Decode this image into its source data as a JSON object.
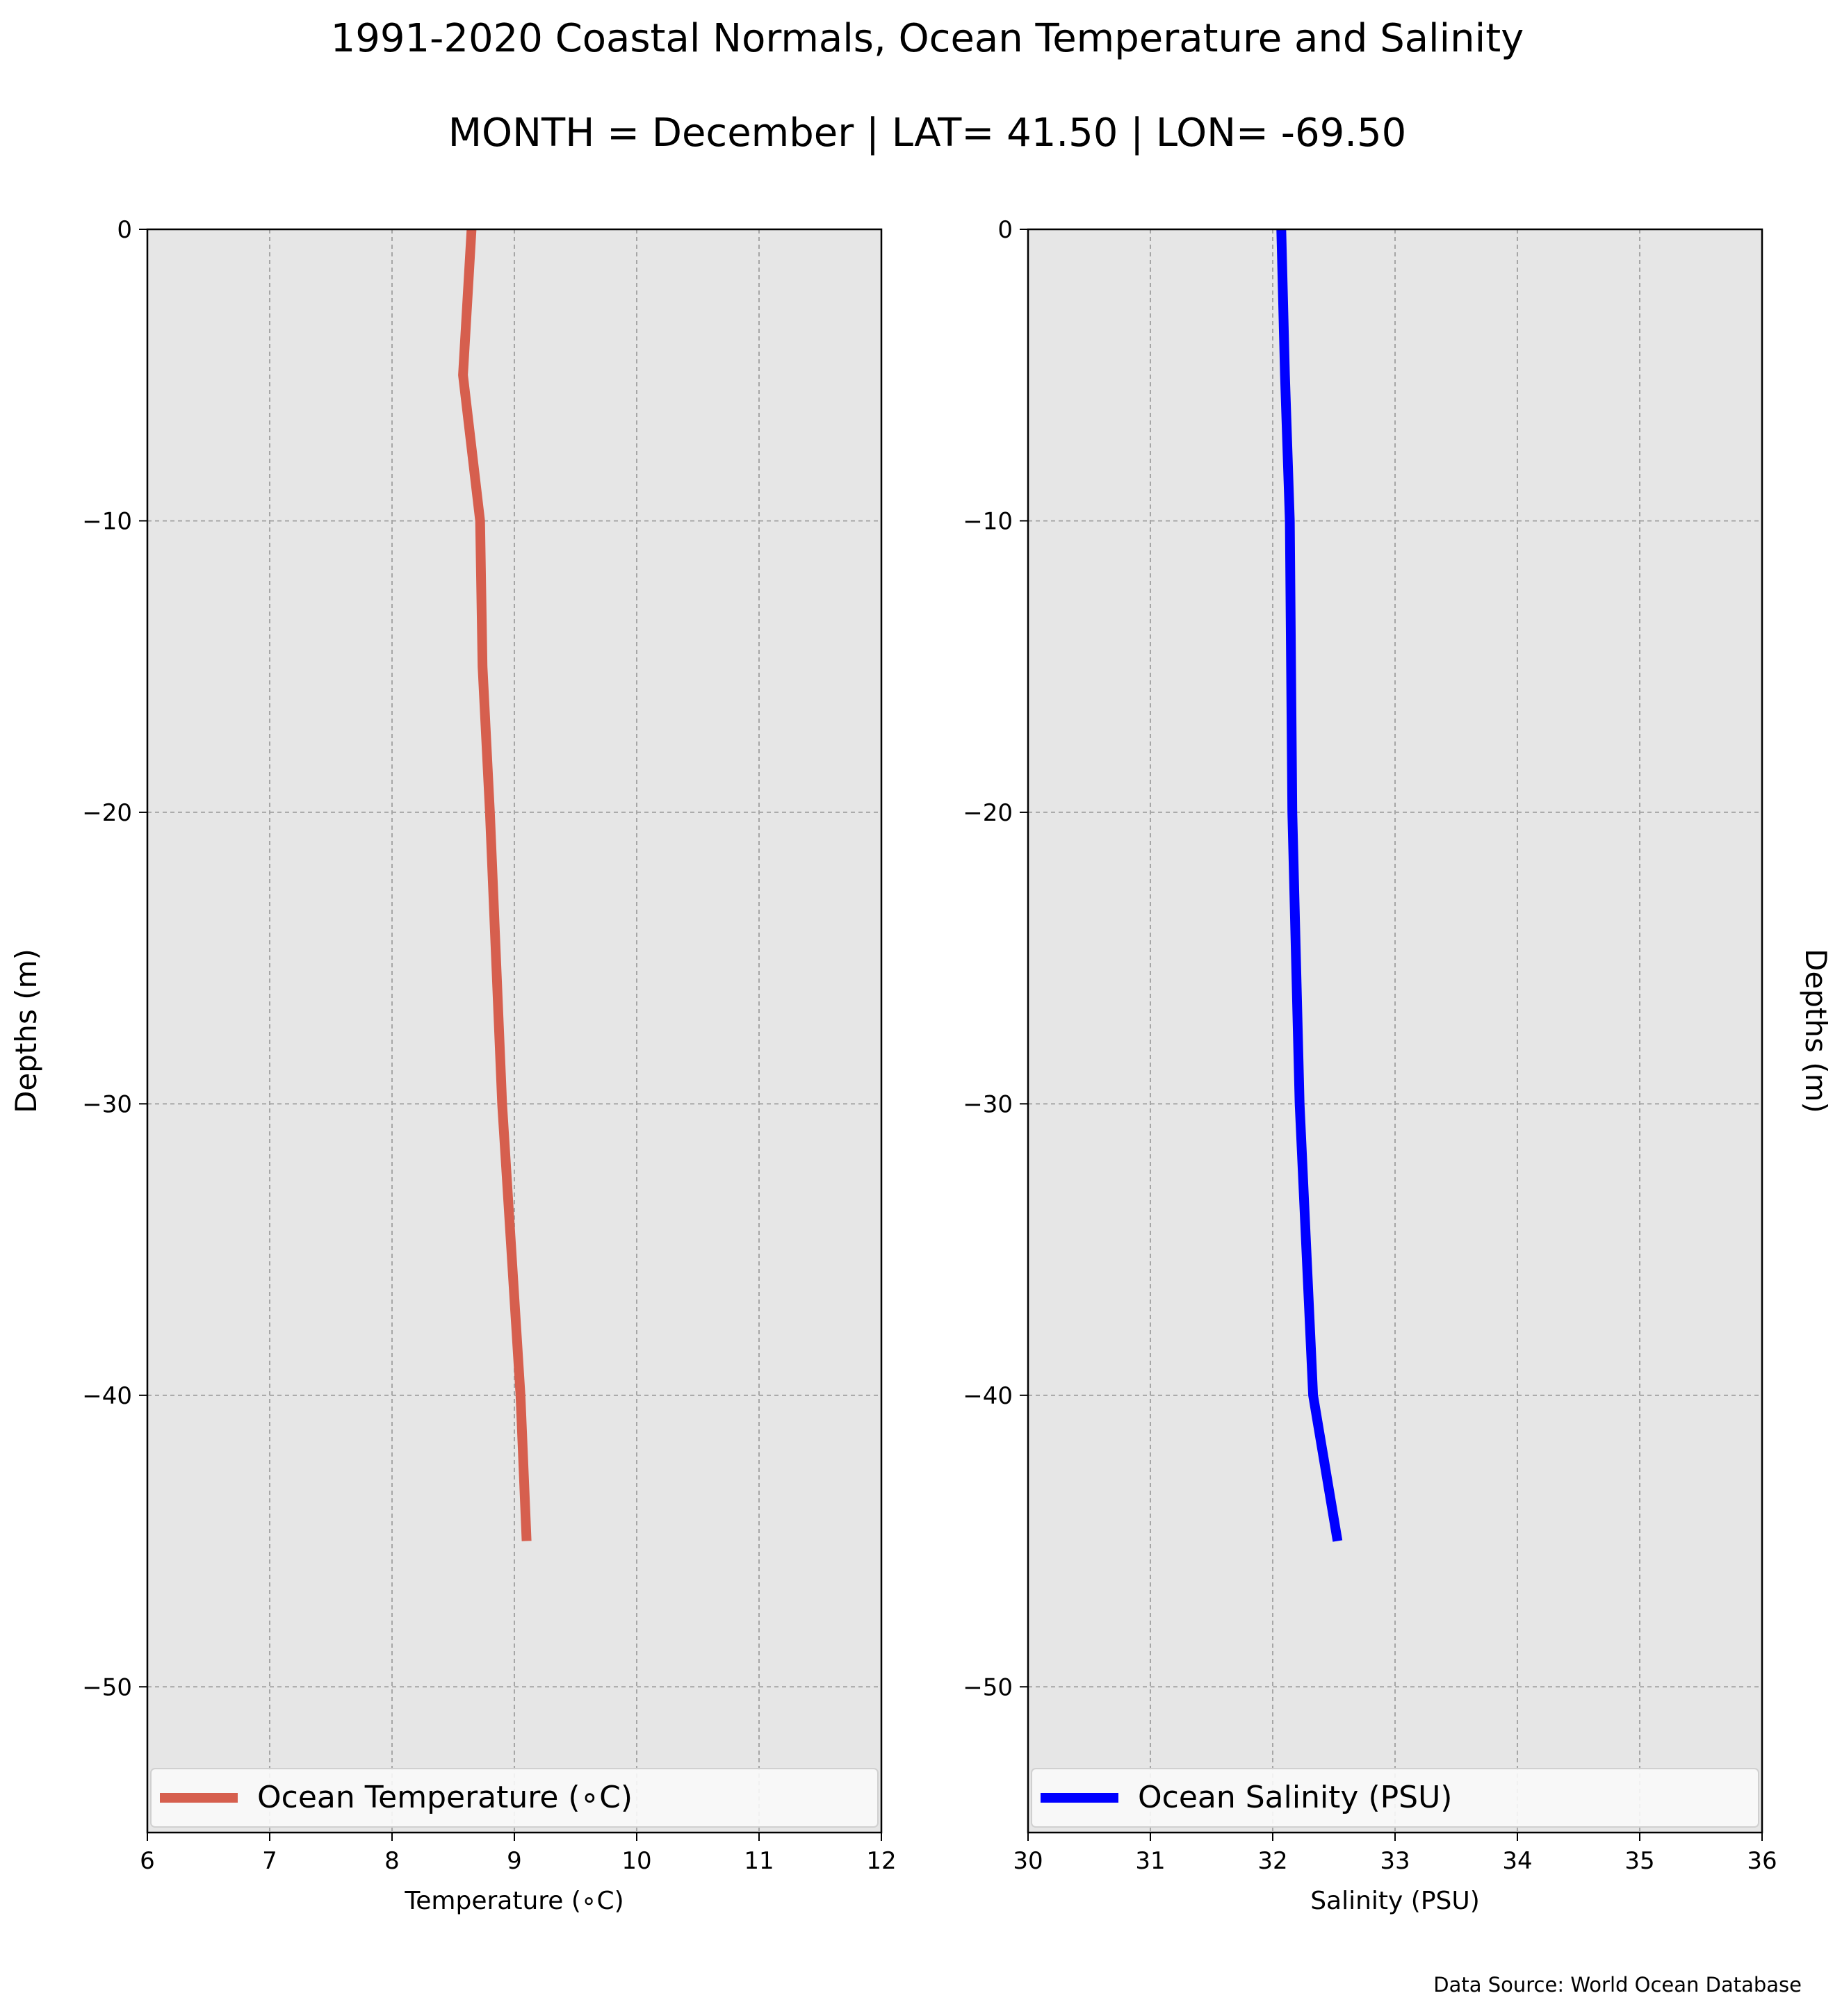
{
  "figure": {
    "title": "1991-2020 Coastal Normals, Ocean Temperature and Salinity",
    "subtitle": "MONTH = December | LAT= 41.50 | LON= -69.50",
    "footer": "Data Source: World Ocean Database",
    "background": "#ffffff",
    "axes_background": "#e6e6e6"
  },
  "chart_data": [
    {
      "type": "line",
      "xlabel": "Temperature (∘C)",
      "ylabel": "Depths (m)",
      "xlim": [
        6,
        12
      ],
      "ylim": [
        -55,
        0
      ],
      "x_ticks": [
        "6",
        "7",
        "8",
        "9",
        "10",
        "11",
        "12"
      ],
      "y_ticks": [
        "0",
        "−10",
        "−20",
        "−30",
        "−40",
        "−50"
      ],
      "grid": true,
      "legend_position": "bottom",
      "series": [
        {
          "name": "Ocean Temperature (∘C)",
          "color": "#d65f4e",
          "x": [
            8.65,
            8.58,
            8.72,
            8.74,
            8.8,
            8.9,
            9.05,
            9.1
          ],
          "y": [
            0,
            -5,
            -10,
            -15,
            -20,
            -30,
            -40,
            -45
          ]
        }
      ]
    },
    {
      "type": "line",
      "xlabel": "Salinity (PSU)",
      "ylabel": "Depths (m)",
      "xlim": [
        30,
        36
      ],
      "ylim": [
        -55,
        0
      ],
      "x_ticks": [
        "30",
        "31",
        "32",
        "33",
        "34",
        "35",
        "36"
      ],
      "y_ticks": [
        "0",
        "−10",
        "−20",
        "−30",
        "−40",
        "−50"
      ],
      "grid": true,
      "legend_position": "bottom",
      "series": [
        {
          "name": "Ocean Salinity (PSU)",
          "color": "#0000ff",
          "x": [
            32.07,
            32.1,
            32.14,
            32.15,
            32.16,
            32.22,
            32.33,
            32.53
          ],
          "y": [
            0,
            -5,
            -10,
            -15,
            -20,
            -30,
            -40,
            -45
          ]
        }
      ]
    }
  ]
}
